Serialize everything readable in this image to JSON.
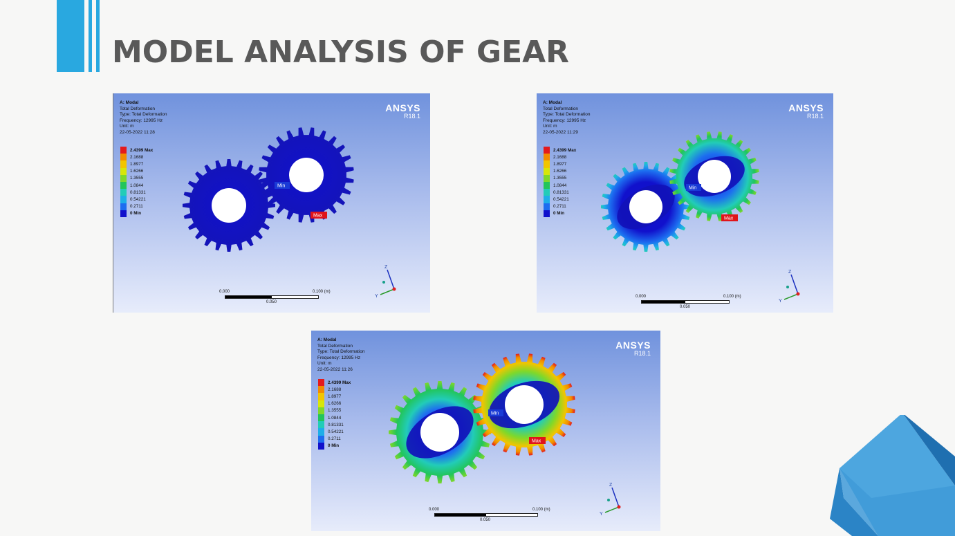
{
  "slide": {
    "title": "MODEL ANALYSIS OF GEAR"
  },
  "panels": [
    {
      "analysis": "A: Modal",
      "result": "Total Deformation",
      "type": "Type: Total Deformation",
      "frequency": "Frequency: 12995 Hz",
      "unit": "Unit: m",
      "timestamp": "22-05-2022 11:28",
      "brand": "ANSYS",
      "version": "R18.1",
      "legend": [
        "2.4399 Max",
        "2.1688",
        "1.8977",
        "1.6266",
        "1.3555",
        "1.0844",
        "0.81331",
        "0.54221",
        "0.2711",
        "0 Min"
      ],
      "min_tag": "Min",
      "max_tag": "Max",
      "scale_start": "0.000",
      "scale_end": "0.100 (m)",
      "scale_mid": "0.050",
      "axis_z": "Z",
      "axis_y": "Y",
      "coloring": "uniform-blue"
    },
    {
      "analysis": "A: Modal",
      "result": "Total Deformation",
      "type": "Type: Total Deformation",
      "frequency": "Frequency: 12995 Hz",
      "unit": "Unit: m",
      "timestamp": "22-05-2022 11:29",
      "brand": "ANSYS",
      "version": "R18.1",
      "legend": [
        "2.4399 Max",
        "2.1688",
        "1.8977",
        "1.6266",
        "1.3555",
        "1.0844",
        "0.81331",
        "0.54221",
        "0.2711",
        "0 Min"
      ],
      "min_tag": "Min",
      "max_tag": "Max",
      "scale_start": "0.000",
      "scale_end": "0.100 (m)",
      "scale_mid": "0.050",
      "axis_z": "Z",
      "axis_y": "Y",
      "coloring": "blue-cyan-green"
    },
    {
      "analysis": "A: Modal",
      "result": "Total Deformation",
      "type": "Type: Total Deformation",
      "frequency": "Frequency: 12995 Hz",
      "unit": "Unit: m",
      "timestamp": "22-05-2022 11:26",
      "brand": "ANSYS",
      "version": "R18.1",
      "legend": [
        "2.4399 Max",
        "2.1688",
        "1.8977",
        "1.6266",
        "1.3555",
        "1.0844",
        "0.81331",
        "0.54221",
        "0.2711",
        "0 Min"
      ],
      "min_tag": "Min",
      "max_tag": "Max",
      "scale_start": "0.000",
      "scale_end": "0.100 (m)",
      "scale_mid": "0.050",
      "axis_z": "Z",
      "axis_y": "Y",
      "coloring": "full-spectrum"
    }
  ],
  "legend_colors": [
    "#e41a1c",
    "#f28b00",
    "#f2c500",
    "#d7e60a",
    "#7fd82a",
    "#22c55a",
    "#22ccb8",
    "#1eaee8",
    "#1d6df0",
    "#1111cc"
  ],
  "decor_colors": {
    "accent": "#29a8e0",
    "corner_light": "#4da6df",
    "corner_dark": "#1f6fb0"
  }
}
